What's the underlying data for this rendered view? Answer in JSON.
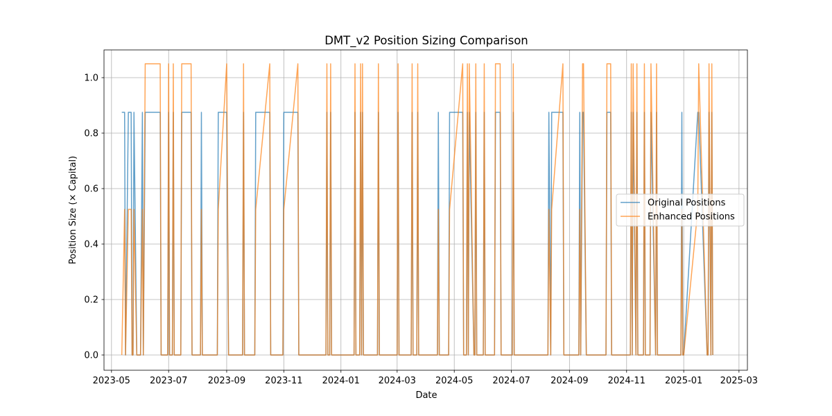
{
  "chart_data": {
    "type": "line",
    "title": "DMT_v2 Position Sizing Comparison",
    "xlabel": "Date",
    "ylabel": "Position Size (× Capital)",
    "x_axis_type": "date",
    "xlim": [
      "2023-04-23",
      "2025-03-10"
    ],
    "ylim": [
      -0.055,
      1.1
    ],
    "x_ticks": [
      "2023-05-01",
      "2023-07-01",
      "2023-09-01",
      "2023-11-01",
      "2024-01-01",
      "2024-03-01",
      "2024-05-01",
      "2024-07-01",
      "2024-09-01",
      "2024-11-01",
      "2025-01-01",
      "2025-03-01"
    ],
    "x_tick_labels": [
      "2023-05",
      "2023-07",
      "2023-09",
      "2023-11",
      "2024-01",
      "2024-03",
      "2024-05",
      "2024-07",
      "2024-09",
      "2024-11",
      "2025-01",
      "2025-03"
    ],
    "y_ticks": [
      0.0,
      0.2,
      0.4,
      0.6,
      0.8,
      1.0
    ],
    "y_tick_labels": [
      "0.0",
      "0.2",
      "0.4",
      "0.6",
      "0.8",
      "1.0"
    ],
    "grid": true,
    "legend_position": "center-right",
    "series": [
      {
        "name": "Original Positions",
        "color": "#1f77b4",
        "x": [
          "2023-05-12",
          "2023-05-15",
          "2023-05-16",
          "2023-05-19",
          "2023-05-22",
          "2023-05-23",
          "2023-05-24",
          "2023-05-25",
          "2023-05-28",
          "2023-06-01",
          "2023-06-03",
          "2023-06-04",
          "2023-06-06",
          "2023-06-10",
          "2023-06-16",
          "2023-06-17",
          "2023-06-22",
          "2023-06-23",
          "2023-06-30",
          "2023-07-01",
          "2023-07-02",
          "2023-07-05",
          "2023-07-06",
          "2023-07-07",
          "2023-07-14",
          "2023-07-15",
          "2023-07-18",
          "2023-07-25",
          "2023-07-26",
          "2023-07-29",
          "2023-08-04",
          "2023-08-05",
          "2023-08-06",
          "2023-08-22",
          "2023-08-23",
          "2023-09-01",
          "2023-09-03",
          "2023-09-18",
          "2023-09-19",
          "2023-09-20",
          "2023-10-01",
          "2023-10-02",
          "2023-10-17",
          "2023-10-18",
          "2023-10-31",
          "2023-11-01",
          "2023-11-16",
          "2023-11-17",
          "2023-12-16",
          "2023-12-17",
          "2023-12-18",
          "2023-12-20",
          "2023-12-21",
          "2023-12-22",
          "2024-01-15",
          "2024-01-16",
          "2024-01-17",
          "2024-01-21",
          "2024-01-22",
          "2024-01-23",
          "2024-01-24",
          "2024-01-25",
          "2024-02-09",
          "2024-02-10",
          "2024-02-11",
          "2024-03-01",
          "2024-03-02",
          "2024-03-03",
          "2024-03-16",
          "2024-03-17",
          "2024-03-18",
          "2024-03-22",
          "2024-03-23",
          "2024-03-24",
          "2024-04-13",
          "2024-04-14",
          "2024-04-15",
          "2024-04-25",
          "2024-04-26",
          "2024-05-10",
          "2024-05-11",
          "2024-05-14",
          "2024-05-15",
          "2024-05-16",
          "2024-05-17",
          "2024-05-22",
          "2024-05-23",
          "2024-05-24",
          "2024-05-25",
          "2024-06-01",
          "2024-06-02",
          "2024-06-03",
          "2024-06-13",
          "2024-06-14",
          "2024-06-19",
          "2024-06-20",
          "2024-07-02",
          "2024-07-03",
          "2024-07-04",
          "2024-08-09",
          "2024-08-10",
          "2024-08-12",
          "2024-08-13",
          "2024-08-25",
          "2024-08-26",
          "2024-09-11",
          "2024-09-12",
          "2024-09-13",
          "2024-09-15",
          "2024-09-16",
          "2024-09-19",
          "2024-10-10",
          "2024-10-11",
          "2024-10-15",
          "2024-10-16",
          "2024-11-05",
          "2024-11-06",
          "2024-11-07",
          "2024-11-08",
          "2024-11-11",
          "2024-11-12",
          "2024-11-13",
          "2024-11-19",
          "2024-11-20",
          "2024-11-21",
          "2024-11-26",
          "2024-11-27",
          "2024-12-02",
          "2024-12-03",
          "2024-12-04",
          "2024-12-29",
          "2024-12-30",
          "2024-12-31",
          "2025-01-01",
          "2025-01-16",
          "2025-01-17",
          "2025-01-26",
          "2025-01-27",
          "2025-01-28",
          "2025-01-30",
          "2025-01-31",
          "2025-02-01"
        ],
        "y": [
          0.875,
          0.875,
          0,
          0.875,
          0.875,
          0,
          0,
          0.875,
          0,
          0,
          0.875,
          0,
          0.875,
          0.875,
          0.875,
          0.875,
          0.875,
          0,
          0,
          0.875,
          0,
          0,
          0.875,
          0,
          0,
          0.875,
          0.875,
          0.875,
          0,
          0,
          0,
          0.875,
          0,
          0,
          0.875,
          0.875,
          0,
          0,
          0.875,
          0,
          0,
          0.875,
          0.875,
          0,
          0,
          0.875,
          0.875,
          0,
          0,
          0.875,
          0,
          0,
          0.875,
          0,
          0,
          0.875,
          0,
          0,
          0.875,
          0,
          0.875,
          0,
          0,
          0.875,
          0,
          0,
          0.875,
          0,
          0,
          0.875,
          0,
          0,
          0.875,
          0,
          0,
          0.875,
          0,
          0,
          0.875,
          0.875,
          0,
          0,
          0.875,
          0,
          0.875,
          0,
          0,
          0.875,
          0,
          0,
          0.875,
          0,
          0,
          0.875,
          0.875,
          0,
          0,
          0.875,
          0,
          0,
          0.875,
          0,
          0.875,
          0.875,
          0,
          0,
          0.875,
          0,
          0.875,
          0.875,
          0,
          0,
          0.875,
          0.875,
          0,
          0,
          0.875,
          0,
          0.875,
          0,
          0.875,
          0,
          0,
          0.875,
          0,
          0,
          0.875,
          0,
          0.875,
          0,
          0,
          0.875,
          0,
          0,
          0.875,
          0.875,
          0,
          0,
          0.875,
          0,
          0.875,
          0
        ],
        "stroke_width": 1.5,
        "opacity": 0.7
      },
      {
        "name": "Enhanced Positions",
        "color": "#ff7f0e",
        "x": [
          "2023-05-12",
          "2023-05-15",
          "2023-05-16",
          "2023-05-19",
          "2023-05-22",
          "2023-05-23",
          "2023-05-24",
          "2023-05-25",
          "2023-05-28",
          "2023-06-01",
          "2023-06-03",
          "2023-06-04",
          "2023-06-06",
          "2023-06-10",
          "2023-06-16",
          "2023-06-17",
          "2023-06-22",
          "2023-06-23",
          "2023-06-30",
          "2023-07-01",
          "2023-07-02",
          "2023-07-05",
          "2023-07-06",
          "2023-07-07",
          "2023-07-14",
          "2023-07-15",
          "2023-07-18",
          "2023-07-25",
          "2023-07-26",
          "2023-07-29",
          "2023-08-04",
          "2023-08-05",
          "2023-08-06",
          "2023-08-22",
          "2023-08-23",
          "2023-09-01",
          "2023-09-03",
          "2023-09-18",
          "2023-09-19",
          "2023-09-20",
          "2023-10-01",
          "2023-10-02",
          "2023-10-17",
          "2023-10-18",
          "2023-10-31",
          "2023-11-01",
          "2023-11-16",
          "2023-11-17",
          "2023-12-16",
          "2023-12-17",
          "2023-12-18",
          "2023-12-20",
          "2023-12-21",
          "2023-12-22",
          "2024-01-15",
          "2024-01-16",
          "2024-01-17",
          "2024-01-21",
          "2024-01-22",
          "2024-01-23",
          "2024-01-24",
          "2024-01-25",
          "2024-02-09",
          "2024-02-10",
          "2024-02-11",
          "2024-03-01",
          "2024-03-02",
          "2024-03-03",
          "2024-03-16",
          "2024-03-17",
          "2024-03-18",
          "2024-03-22",
          "2024-03-23",
          "2024-03-24",
          "2024-04-13",
          "2024-04-14",
          "2024-04-15",
          "2024-04-25",
          "2024-04-26",
          "2024-05-10",
          "2024-05-11",
          "2024-05-14",
          "2024-05-15",
          "2024-05-16",
          "2024-05-17",
          "2024-05-22",
          "2024-05-23",
          "2024-05-24",
          "2024-05-25",
          "2024-06-01",
          "2024-06-02",
          "2024-06-03",
          "2024-06-13",
          "2024-06-14",
          "2024-06-19",
          "2024-06-20",
          "2024-07-02",
          "2024-07-03",
          "2024-07-04",
          "2024-08-09",
          "2024-08-10",
          "2024-08-12",
          "2024-08-13",
          "2024-08-25",
          "2024-08-26",
          "2024-09-11",
          "2024-09-12",
          "2024-09-13",
          "2024-09-15",
          "2024-09-16",
          "2024-09-19",
          "2024-10-10",
          "2024-10-11",
          "2024-10-15",
          "2024-10-16",
          "2024-11-05",
          "2024-11-06",
          "2024-11-07",
          "2024-11-08",
          "2024-11-11",
          "2024-11-12",
          "2024-11-13",
          "2024-11-19",
          "2024-11-20",
          "2024-11-21",
          "2024-11-26",
          "2024-11-27",
          "2024-12-02",
          "2024-12-03",
          "2024-12-04",
          "2024-12-29",
          "2024-12-30",
          "2024-12-31",
          "2025-01-01",
          "2025-01-16",
          "2025-01-17",
          "2025-01-26",
          "2025-01-27",
          "2025-01-28",
          "2025-01-30",
          "2025-01-31",
          "2025-02-01"
        ],
        "y": [
          0,
          0.525,
          0,
          0.525,
          0.525,
          0,
          0,
          0.525,
          0,
          0,
          0.525,
          0,
          1.05,
          1.05,
          1.05,
          1.05,
          1.05,
          0,
          0,
          1.05,
          0,
          0,
          1.05,
          0,
          0,
          1.05,
          1.05,
          1.05,
          0,
          0,
          0,
          0.525,
          0,
          0,
          0.525,
          1.05,
          0,
          0,
          1.05,
          0,
          0,
          0.525,
          1.05,
          0,
          0,
          0.525,
          1.05,
          0,
          0,
          1.05,
          0,
          0,
          1.05,
          0,
          0,
          1.05,
          0,
          0,
          1.05,
          0,
          1.05,
          0,
          0,
          1.05,
          0,
          0,
          1.05,
          0,
          0,
          1.05,
          0,
          0,
          1.05,
          0,
          0,
          0.525,
          0,
          0,
          0.525,
          1.05,
          0,
          0,
          1.05,
          0,
          1.05,
          0,
          0,
          1.05,
          0,
          0,
          1.05,
          0,
          0,
          1.05,
          1.05,
          0,
          0,
          1.05,
          0,
          0,
          0.525,
          0,
          0.525,
          1.05,
          0,
          0,
          0.525,
          0,
          1.05,
          1.05,
          0,
          0,
          1.05,
          1.05,
          0,
          0,
          1.05,
          0,
          1.05,
          0,
          1.05,
          0,
          0,
          1.05,
          0,
          0,
          1.05,
          0,
          1.05,
          0,
          0,
          0.525,
          0,
          0,
          0.525,
          1.05,
          0,
          0,
          1.05,
          0,
          1.05,
          0
        ],
        "stroke_width": 1.5,
        "opacity": 0.7
      }
    ]
  }
}
